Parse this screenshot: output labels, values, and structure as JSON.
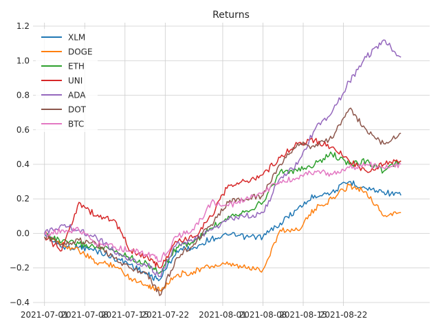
{
  "chart_data": {
    "type": "line",
    "title": "Returns",
    "xlabel": "",
    "ylabel": "",
    "x_ticks": [
      "2021-07-01",
      "2021-07-08",
      "2021-07-15",
      "2021-07-22",
      "2021-08-01",
      "2021-08-08",
      "2021-08-15",
      "2021-08-22"
    ],
    "y_ticks": [
      "−0.4",
      "−0.2",
      "0.0",
      "0.2",
      "0.4",
      "0.6",
      "0.8",
      "1.0",
      "1.2"
    ],
    "ylim": [
      -0.42,
      1.22
    ],
    "xlim": [
      "2021-06-29",
      "2021-09-06"
    ],
    "grid": true,
    "legend_position": "upper-left",
    "x": [
      "2021-07-01",
      "2021-07-04",
      "2021-07-07",
      "2021-07-10",
      "2021-07-13",
      "2021-07-16",
      "2021-07-19",
      "2021-07-21",
      "2021-07-24",
      "2021-07-27",
      "2021-07-30",
      "2021-08-02",
      "2021-08-05",
      "2021-08-08",
      "2021-08-11",
      "2021-08-14",
      "2021-08-17",
      "2021-08-20",
      "2021-08-23",
      "2021-08-26",
      "2021-08-29",
      "2021-09-01"
    ],
    "series": [
      {
        "name": "XLM",
        "color": "#1f77b4",
        "values": [
          0.0,
          -0.08,
          -0.08,
          -0.1,
          -0.14,
          -0.18,
          -0.24,
          -0.27,
          -0.1,
          -0.08,
          -0.03,
          -0.01,
          -0.02,
          -0.02,
          0.06,
          0.14,
          0.22,
          0.24,
          0.3,
          0.26,
          0.24,
          0.22
        ]
      },
      {
        "name": "DOGE",
        "color": "#ff7f0e",
        "values": [
          0.0,
          -0.06,
          -0.1,
          -0.17,
          -0.18,
          -0.26,
          -0.3,
          -0.33,
          -0.24,
          -0.22,
          -0.19,
          -0.18,
          -0.2,
          -0.21,
          0.02,
          0.02,
          0.14,
          0.2,
          0.28,
          0.24,
          0.1,
          0.12
        ]
      },
      {
        "name": "ETH",
        "color": "#2ca02c",
        "values": [
          0.0,
          -0.05,
          -0.06,
          -0.08,
          -0.1,
          -0.14,
          -0.18,
          -0.23,
          -0.08,
          -0.05,
          0.03,
          0.1,
          0.13,
          0.18,
          0.36,
          0.36,
          0.4,
          0.46,
          0.4,
          0.42,
          0.36,
          0.42
        ]
      },
      {
        "name": "UNI",
        "color": "#d62728",
        "values": [
          -0.02,
          -0.1,
          0.18,
          0.1,
          0.08,
          -0.1,
          -0.14,
          -0.2,
          -0.05,
          -0.02,
          0.1,
          0.28,
          0.3,
          0.34,
          0.44,
          0.52,
          0.54,
          0.5,
          0.42,
          0.36,
          0.4,
          0.42
        ]
      },
      {
        "name": "ADA",
        "color": "#9467bd",
        "values": [
          0.0,
          0.05,
          0.02,
          -0.02,
          -0.1,
          -0.16,
          -0.18,
          -0.25,
          -0.06,
          -0.04,
          0.02,
          0.08,
          0.1,
          0.12,
          0.32,
          0.4,
          0.6,
          0.7,
          0.88,
          1.02,
          1.12,
          1.02
        ]
      },
      {
        "name": "DOT",
        "color": "#8c564b",
        "values": [
          -0.02,
          -0.06,
          -0.04,
          -0.06,
          -0.14,
          -0.2,
          -0.24,
          -0.36,
          -0.14,
          -0.06,
          0.05,
          0.18,
          0.2,
          0.22,
          0.4,
          0.52,
          0.5,
          0.55,
          0.72,
          0.6,
          0.52,
          0.58
        ]
      },
      {
        "name": "BTC",
        "color": "#e377c2",
        "values": [
          -0.01,
          0.02,
          0.02,
          -0.06,
          -0.08,
          -0.1,
          -0.12,
          -0.16,
          -0.02,
          0.02,
          0.18,
          0.16,
          0.2,
          0.24,
          0.3,
          0.32,
          0.36,
          0.34,
          0.38,
          0.4,
          0.38,
          0.4
        ]
      }
    ]
  }
}
